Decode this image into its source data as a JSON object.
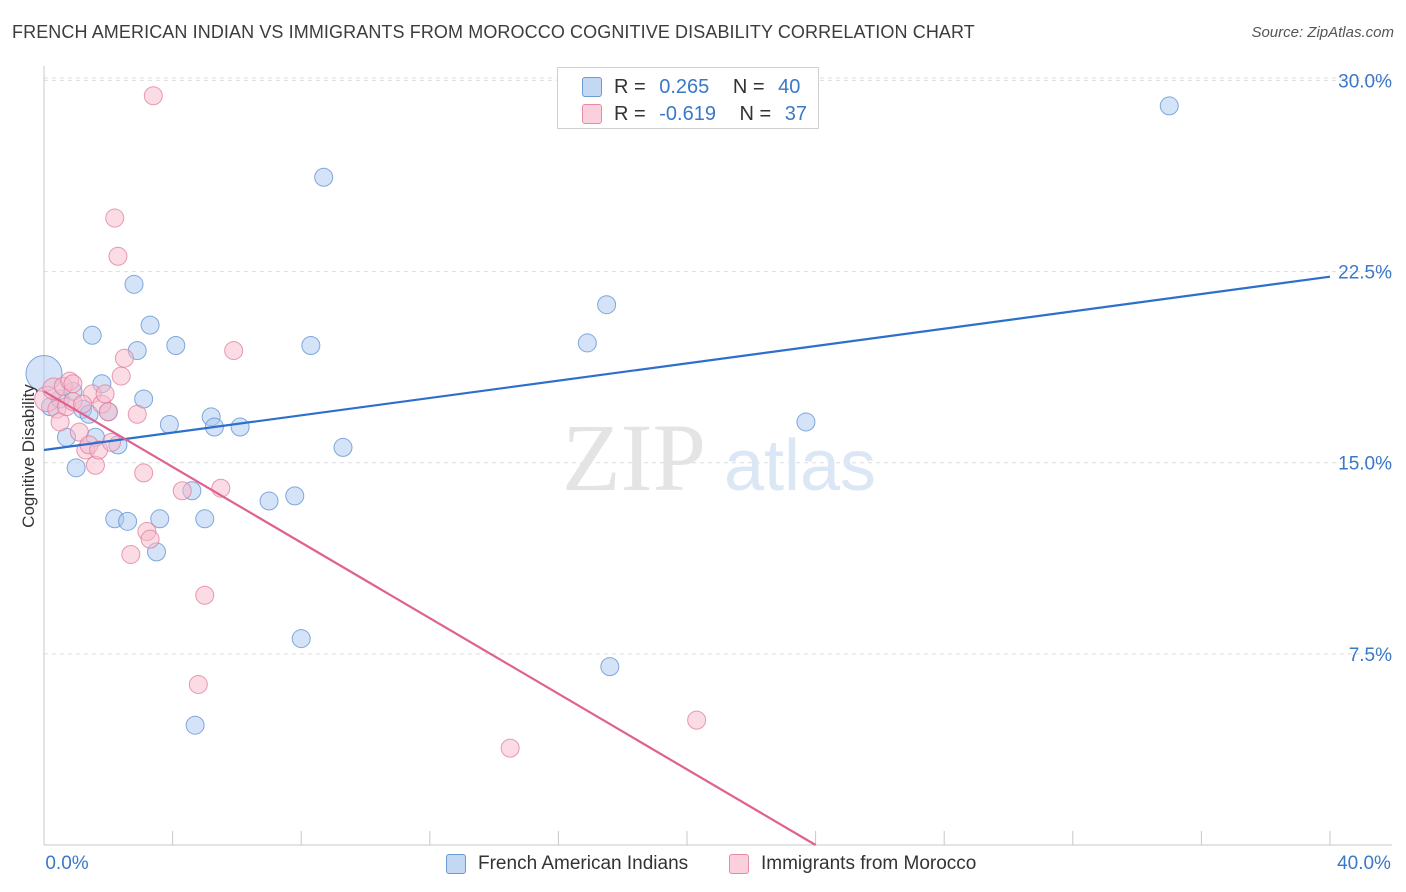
{
  "title": "FRENCH AMERICAN INDIAN VS IMMIGRANTS FROM MOROCCO COGNITIVE DISABILITY CORRELATION CHART",
  "source": "Source: ZipAtlas.com",
  "watermark": {
    "zip": "ZIP",
    "atlas": "atlas"
  },
  "legend": {
    "series1": {
      "r_label": "R =",
      "r_value": "0.265",
      "n_label": "N =",
      "n_value": "40"
    },
    "series2": {
      "r_label": "R =",
      "r_value": "-0.619",
      "n_label": "N =",
      "n_value": "37"
    }
  },
  "colors": {
    "blue_fill": "#a9c8ef",
    "blue_stroke": "#5a8fd0",
    "blue_line": "#2e6fcc",
    "pink_fill": "#f7b9cc",
    "pink_stroke": "#e07a9a",
    "pink_line": "#e06090",
    "axis_text": "#3a78c8",
    "grid": "#dddddd"
  },
  "chart_data": {
    "type": "scatter",
    "title": "FRENCH AMERICAN INDIAN VS IMMIGRANTS FROM MOROCCO COGNITIVE DISABILITY CORRELATION CHART",
    "xlabel": "",
    "ylabel": "Cognitive Disability",
    "xlim": [
      0,
      40
    ],
    "ylim": [
      0,
      31.5
    ],
    "x_tick_labels": [
      "0.0%",
      "40.0%"
    ],
    "y_ticks": [
      7.5,
      15.0,
      22.5,
      30.0
    ],
    "y_tick_labels": [
      "7.5%",
      "15.0%",
      "22.5%",
      "30.0%"
    ],
    "legend_labels": [
      "French American Indians",
      "Immigrants from Morocco"
    ],
    "series": [
      {
        "name": "French American Indians",
        "points": [
          [
            0.0,
            18.5,
            2.0
          ],
          [
            0.2,
            17.2,
            1
          ],
          [
            0.5,
            17.5,
            1
          ],
          [
            0.7,
            16.0,
            1
          ],
          [
            0.9,
            17.8,
            1
          ],
          [
            1.0,
            14.8,
            1
          ],
          [
            1.2,
            17.1,
            1
          ],
          [
            1.4,
            16.9,
            1
          ],
          [
            1.5,
            20.0,
            1
          ],
          [
            1.6,
            16.0,
            1
          ],
          [
            1.8,
            18.1,
            1
          ],
          [
            2.0,
            17.0,
            1
          ],
          [
            2.2,
            12.8,
            1
          ],
          [
            2.3,
            15.7,
            1
          ],
          [
            2.6,
            12.7,
            1
          ],
          [
            2.8,
            22.0,
            1
          ],
          [
            2.9,
            19.4,
            1
          ],
          [
            3.1,
            17.5,
            1
          ],
          [
            3.3,
            20.4,
            1
          ],
          [
            3.5,
            11.5,
            1
          ],
          [
            3.6,
            12.8,
            1
          ],
          [
            3.9,
            16.5,
            1
          ],
          [
            4.1,
            19.6,
            1
          ],
          [
            4.6,
            13.9,
            1
          ],
          [
            4.7,
            4.7,
            1
          ],
          [
            5.0,
            12.8,
            1
          ],
          [
            5.2,
            16.8,
            1
          ],
          [
            5.3,
            16.4,
            1
          ],
          [
            6.1,
            16.4,
            1
          ],
          [
            7.0,
            13.5,
            1
          ],
          [
            7.8,
            13.7,
            1
          ],
          [
            8.0,
            8.1,
            1
          ],
          [
            8.3,
            19.6,
            1
          ],
          [
            8.7,
            26.2,
            1
          ],
          [
            9.3,
            15.6,
            1
          ],
          [
            16.9,
            19.7,
            1
          ],
          [
            17.5,
            21.2,
            1
          ],
          [
            17.6,
            7.0,
            1
          ],
          [
            23.7,
            16.6,
            1
          ],
          [
            35.0,
            29.0,
            1
          ]
        ],
        "trend": {
          "x1": 0,
          "y1": 15.5,
          "x2": 40,
          "y2": 22.3
        }
      },
      {
        "name": "Immigrants from Morocco",
        "points": [
          [
            0.1,
            17.5,
            1.4
          ],
          [
            0.3,
            17.9,
            1.2
          ],
          [
            0.4,
            17.1,
            1
          ],
          [
            0.5,
            16.6,
            1
          ],
          [
            0.6,
            18.0,
            1
          ],
          [
            0.7,
            17.2,
            1
          ],
          [
            0.8,
            18.2,
            1
          ],
          [
            0.9,
            17.4,
            1
          ],
          [
            1.1,
            16.2,
            1
          ],
          [
            1.3,
            15.5,
            1
          ],
          [
            1.4,
            15.7,
            1
          ],
          [
            1.5,
            17.7,
            1
          ],
          [
            1.6,
            14.9,
            1
          ],
          [
            1.7,
            15.5,
            1
          ],
          [
            1.8,
            17.3,
            1
          ],
          [
            1.9,
            17.7,
            1
          ],
          [
            2.0,
            17.0,
            1
          ],
          [
            2.1,
            15.8,
            1
          ],
          [
            2.2,
            24.6,
            1
          ],
          [
            2.3,
            23.1,
            1
          ],
          [
            2.4,
            18.4,
            1
          ],
          [
            2.5,
            19.1,
            1
          ],
          [
            2.7,
            11.4,
            1
          ],
          [
            2.9,
            16.9,
            1
          ],
          [
            3.1,
            14.6,
            1
          ],
          [
            3.2,
            12.3,
            1
          ],
          [
            3.3,
            12.0,
            1
          ],
          [
            3.4,
            29.4,
            1
          ],
          [
            4.3,
            13.9,
            1
          ],
          [
            4.8,
            6.3,
            1
          ],
          [
            5.0,
            9.8,
            1
          ],
          [
            5.5,
            14.0,
            1
          ],
          [
            5.9,
            19.4,
            1
          ],
          [
            1.2,
            17.3,
            1
          ],
          [
            14.5,
            3.8,
            1
          ],
          [
            20.3,
            4.9,
            1
          ],
          [
            0.9,
            18.1,
            1
          ]
        ],
        "trend": {
          "x1": 0,
          "y1": 17.8,
          "x2": 24.0,
          "y2": 0
        }
      }
    ]
  }
}
